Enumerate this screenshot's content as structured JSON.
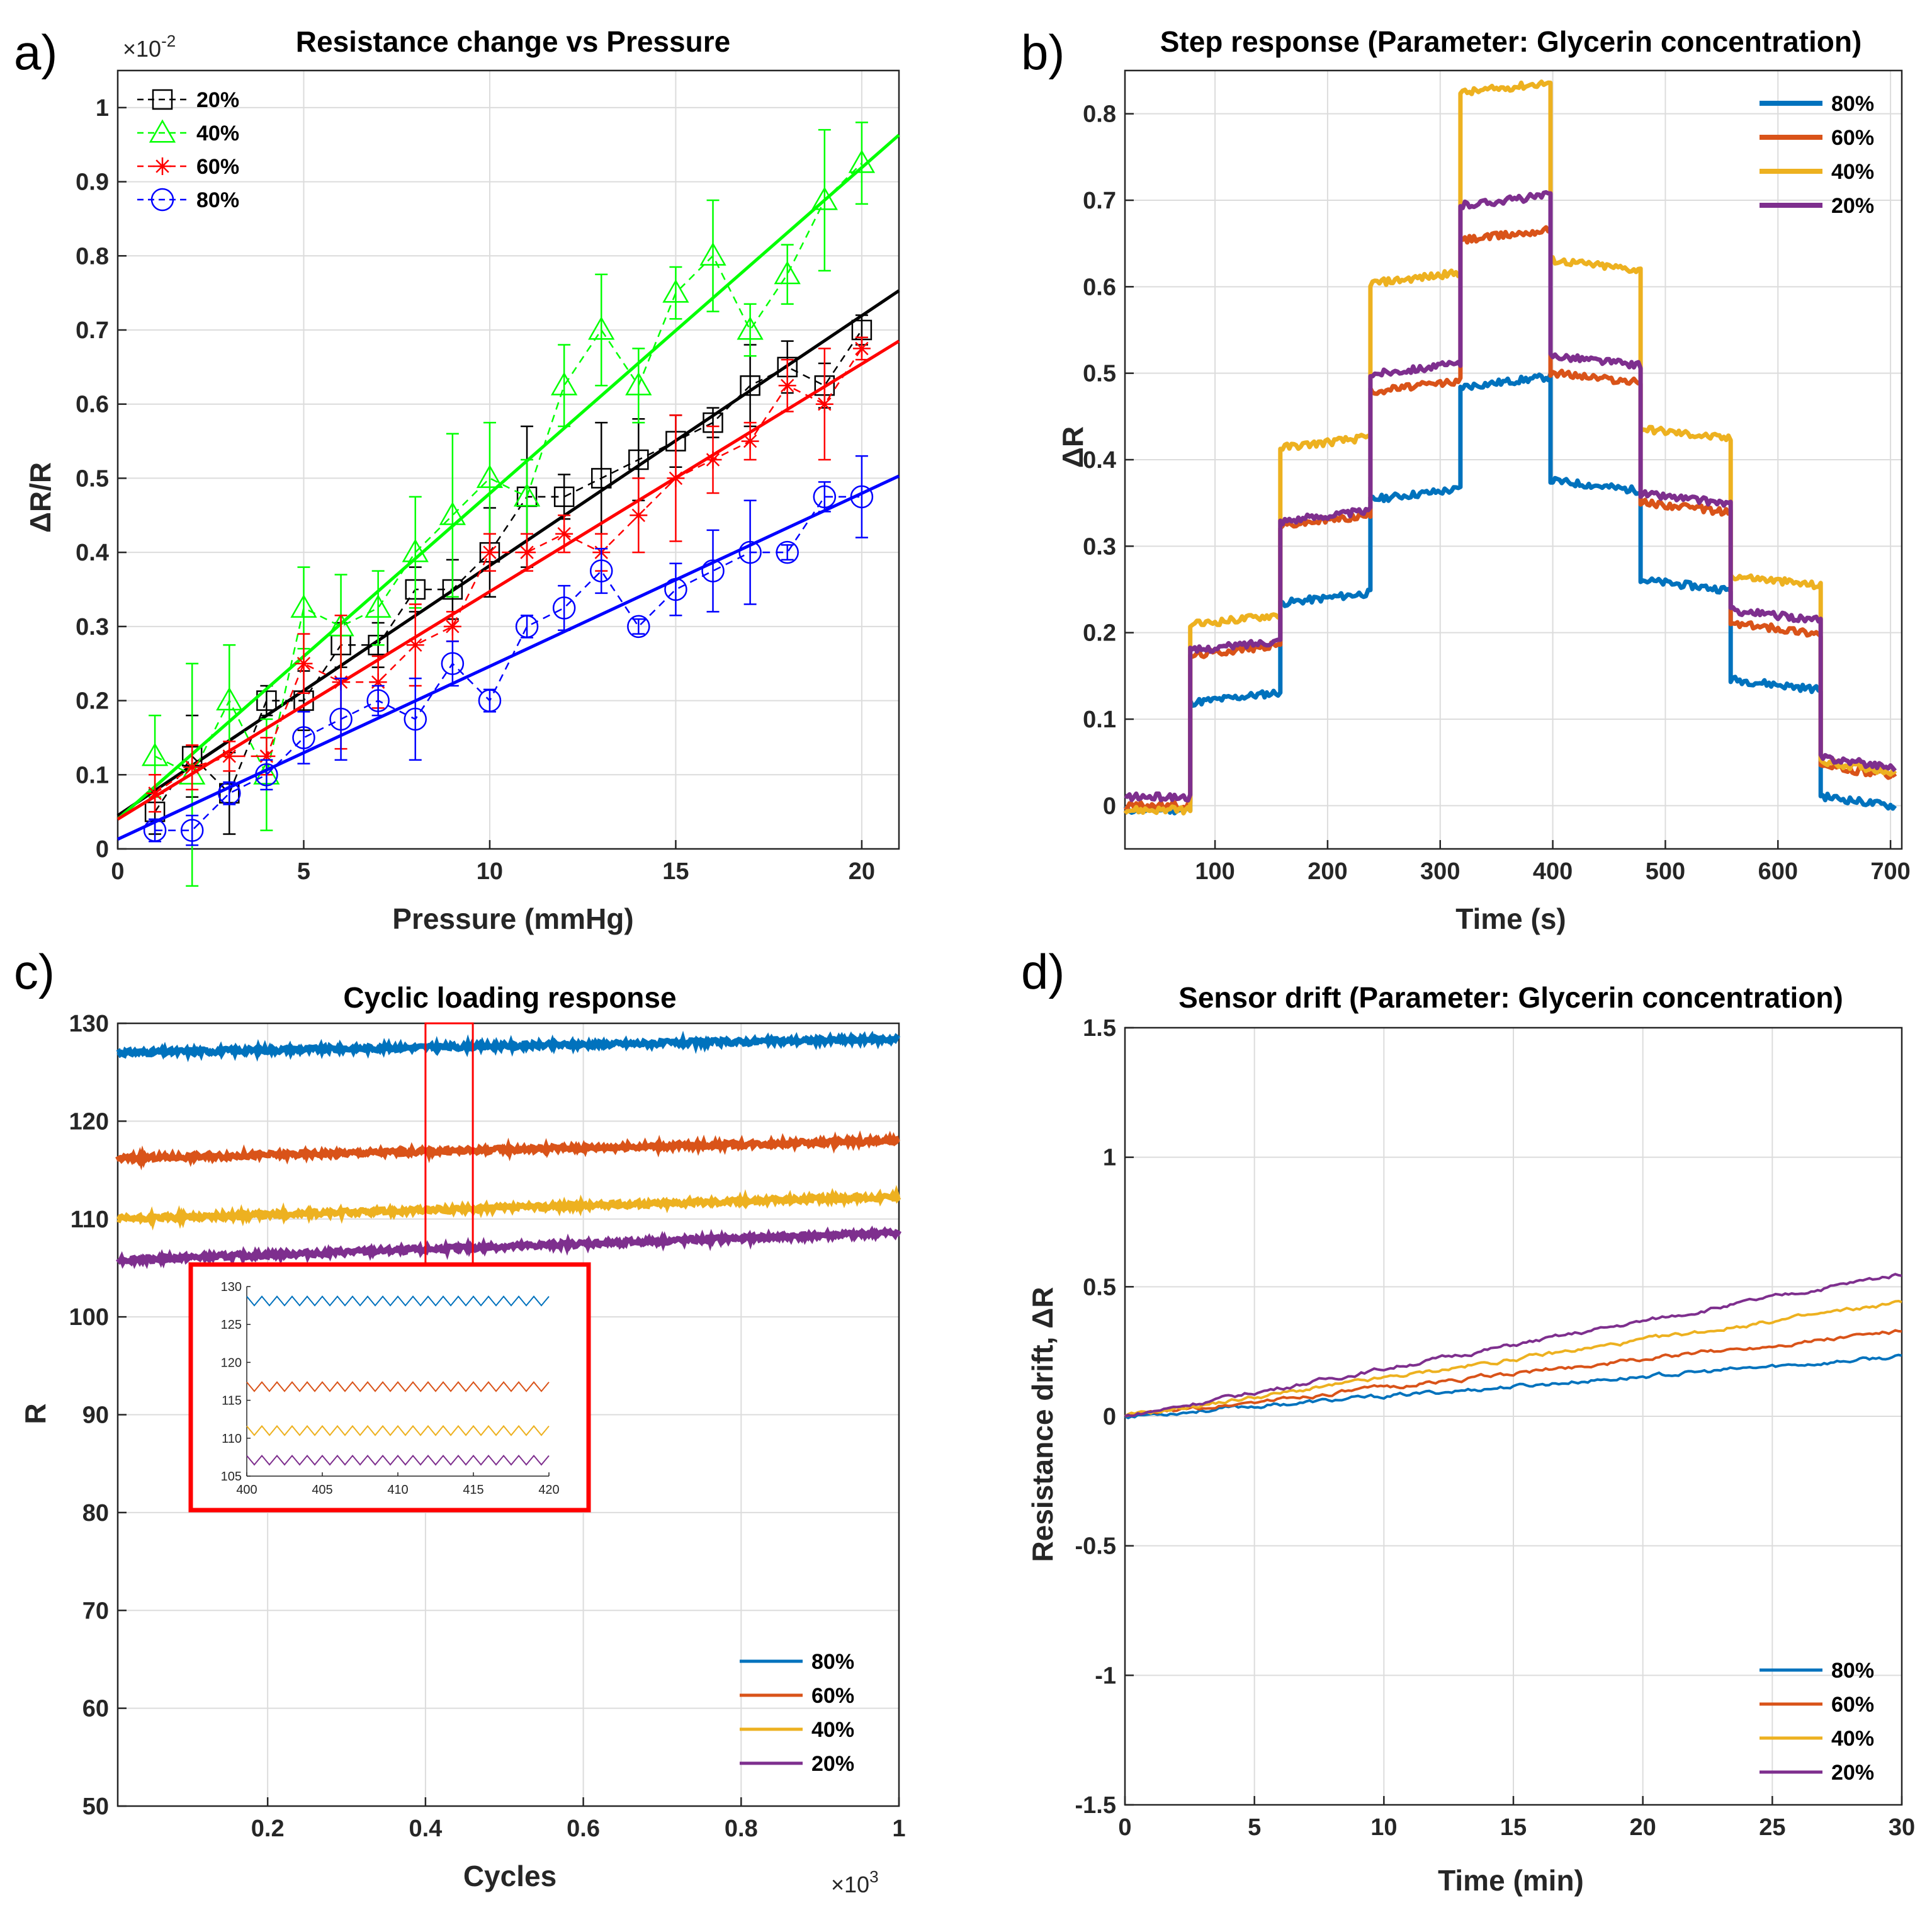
{
  "figure": {
    "panel_labels": [
      "a)",
      "b)",
      "c)",
      "d)"
    ]
  },
  "chart_data": [
    {
      "panel": "a)",
      "type": "line",
      "subtype": "errorbar-with-linear-fit",
      "title": "Resistance change vs Pressure",
      "xlabel": "Pressure (mmHg)",
      "ylabel": "ΔR/R",
      "y_multiplier": "×10",
      "y_multiplier_exp": "-2",
      "xlim": [
        0,
        21
      ],
      "ylim": [
        0,
        1.05
      ],
      "xticks": [
        0,
        5,
        10,
        15,
        20
      ],
      "xtick_labels": [
        "0",
        "5",
        "10",
        "15",
        "20"
      ],
      "yticks": [
        0,
        0.1,
        0.2,
        0.3,
        0.4,
        0.5,
        0.6,
        0.7,
        0.8,
        0.9,
        1
      ],
      "ytick_labels": [
        "0",
        "0.1",
        "0.2",
        "0.3",
        "0.4",
        "0.5",
        "0.6",
        "0.7",
        "0.8",
        "0.9",
        "1"
      ],
      "grid": true,
      "legend": "top-left",
      "x": [
        1,
        2,
        3,
        4,
        5,
        6,
        7,
        8,
        9,
        10,
        11,
        12,
        13,
        14,
        15,
        16,
        17,
        18,
        19,
        20
      ],
      "series": [
        {
          "name": "20%",
          "color": "#000000",
          "marker": "square",
          "values": [
            0.05,
            0.125,
            0.075,
            0.2,
            0.2,
            0.275,
            0.275,
            0.35,
            0.35,
            0.4,
            0.475,
            0.475,
            0.5,
            0.525,
            0.55,
            0.575,
            0.625,
            0.65,
            0.625,
            0.7
          ],
          "errors": [
            0.03,
            0.055,
            0.055,
            0.02,
            0.04,
            0.03,
            0.03,
            0.03,
            0.04,
            0.06,
            0.095,
            0.03,
            0.075,
            0.055,
            0.035,
            0.02,
            0.055,
            0.035,
            0.03,
            0.02
          ],
          "fit": [
            0.045,
            0.753
          ]
        },
        {
          "name": "40%",
          "color": "#00ff00",
          "marker": "triangle",
          "values": [
            0.125,
            0.1,
            0.2,
            0.1,
            0.325,
            0.3,
            0.325,
            0.4,
            0.45,
            0.5,
            0.475,
            0.625,
            0.7,
            0.625,
            0.75,
            0.8,
            0.7,
            0.775,
            0.875,
            0.925
          ],
          "errors": [
            0.055,
            0.15,
            0.075,
            0.075,
            0.055,
            0.07,
            0.05,
            0.075,
            0.11,
            0.075,
            0.05,
            0.055,
            0.075,
            0.05,
            0.035,
            0.075,
            0.035,
            0.04,
            0.095,
            0.055
          ],
          "fit": [
            0.04,
            0.963
          ]
        },
        {
          "name": "60%",
          "color": "#ff0000",
          "marker": "asterisk",
          "values": [
            0.075,
            0.11,
            0.125,
            0.125,
            0.25,
            0.225,
            0.225,
            0.275,
            0.3,
            0.4,
            0.4,
            0.425,
            0.4,
            0.45,
            0.5,
            0.525,
            0.55,
            0.625,
            0.6,
            0.675
          ],
          "errors": [
            0.025,
            0.03,
            0.02,
            0.025,
            0.04,
            0.09,
            0.035,
            0.055,
            0.02,
            0.025,
            0.025,
            0.025,
            0.025,
            0.05,
            0.085,
            0.045,
            0.025,
            0.035,
            0.075,
            0.015
          ],
          "fit": [
            0.04,
            0.685
          ]
        },
        {
          "name": "80%",
          "color": "#0000ff",
          "marker": "circle",
          "values": [
            0.025,
            0.025,
            0.075,
            0.1,
            0.15,
            0.175,
            0.2,
            0.175,
            0.25,
            0.2,
            0.3,
            0.325,
            0.375,
            0.3,
            0.35,
            0.375,
            0.4,
            0.4,
            0.475,
            0.475
          ],
          "errors": [
            0.015,
            0.02,
            0.015,
            0.02,
            0.035,
            0.055,
            0.02,
            0.055,
            0.03,
            0.015,
            0.015,
            0.03,
            0.03,
            0.01,
            0.035,
            0.055,
            0.07,
            0.01,
            0.02,
            0.055
          ],
          "fit": [
            0.013,
            0.503
          ]
        }
      ]
    },
    {
      "panel": "b)",
      "type": "line",
      "title": "Step response (Parameter: Glycerin concentration)",
      "xlabel": "Time (s)",
      "ylabel": "ΔR",
      "xlim": [
        20,
        710
      ],
      "ylim": [
        -0.05,
        0.85
      ],
      "xticks": [
        100,
        200,
        300,
        400,
        500,
        600,
        700
      ],
      "xtick_labels": [
        "100",
        "200",
        "300",
        "400",
        "500",
        "600",
        "700"
      ],
      "yticks": [
        0,
        0.1,
        0.2,
        0.3,
        0.4,
        0.5,
        0.6,
        0.7,
        0.8
      ],
      "ytick_labels": [
        "0",
        "0.1",
        "0.2",
        "0.3",
        "0.4",
        "0.5",
        "0.6",
        "0.7",
        "0.8"
      ],
      "grid": true,
      "legend": "top-right",
      "step_times": [
        20,
        78,
        158,
        238,
        318,
        398,
        478,
        558,
        638,
        705
      ],
      "series": [
        {
          "name": "80%",
          "color": "#0072bd",
          "levels": [
            -0.005,
            0.125,
            0.24,
            0.36,
            0.49,
            0.37,
            0.255,
            0.14,
            0.005
          ]
        },
        {
          "name": "60%",
          "color": "#d95319",
          "levels": [
            0.0,
            0.18,
            0.33,
            0.485,
            0.66,
            0.495,
            0.345,
            0.205,
            0.04
          ]
        },
        {
          "name": "40%",
          "color": "#edb120",
          "levels": [
            -0.005,
            0.215,
            0.42,
            0.61,
            0.83,
            0.625,
            0.43,
            0.26,
            0.045
          ]
        },
        {
          "name": "20%",
          "color": "#7e2f8e",
          "levels": [
            0.01,
            0.185,
            0.335,
            0.505,
            0.7,
            0.515,
            0.355,
            0.22,
            0.05
          ]
        }
      ]
    },
    {
      "panel": "c)",
      "type": "line",
      "title": "Cyclic loading response",
      "xlabel": "Cycles",
      "ylabel": "R",
      "x_multiplier": "×10",
      "x_multiplier_exp": "3",
      "xlim": [
        0.01,
        1.0
      ],
      "ylim": [
        50,
        130
      ],
      "xticks": [
        0.2,
        0.4,
        0.6,
        0.8,
        1
      ],
      "xtick_labels": [
        "0.2",
        "0.4",
        "0.6",
        "0.8",
        "1"
      ],
      "yticks": [
        50,
        60,
        70,
        80,
        90,
        100,
        110,
        120,
        130
      ],
      "ytick_labels": [
        "50",
        "60",
        "70",
        "80",
        "90",
        "100",
        "110",
        "120",
        "130"
      ],
      "grid": true,
      "legend": "bottom-right",
      "series": [
        {
          "name": "80%",
          "color": "#0072bd",
          "start": 127.0,
          "end": 128.4
        },
        {
          "name": "60%",
          "color": "#d95319",
          "start": 116.2,
          "end": 118.0
        },
        {
          "name": "40%",
          "color": "#edb120",
          "start": 110.0,
          "end": 112.3
        },
        {
          "name": "20%",
          "color": "#7e2f8e",
          "start": 105.8,
          "end": 108.6
        }
      ],
      "zoom_region": {
        "x": [
          0.4,
          0.46
        ],
        "y": [
          103,
          130
        ]
      },
      "inset": {
        "xlim": [
          400,
          420
        ],
        "ylim": [
          105,
          130
        ],
        "xticks": [
          400,
          405,
          410,
          415,
          420
        ],
        "xtick_labels": [
          "400",
          "405",
          "410",
          "415",
          "420"
        ],
        "yticks": [
          105,
          110,
          115,
          120,
          125,
          130
        ],
        "ytick_labels": [
          "105",
          "110",
          "115",
          "120",
          "125",
          "130"
        ],
        "cycles": 20,
        "series": [
          {
            "name": "80%",
            "color": "#0072bd",
            "mean": 128.1,
            "amp": 0.6
          },
          {
            "name": "60%",
            "color": "#d95319",
            "mean": 116.8,
            "amp": 0.6
          },
          {
            "name": "40%",
            "color": "#edb120",
            "mean": 111.0,
            "amp": 0.6
          },
          {
            "name": "20%",
            "color": "#7e2f8e",
            "mean": 107.1,
            "amp": 0.6
          }
        ]
      }
    },
    {
      "panel": "d)",
      "type": "line",
      "title": "Sensor drift (Parameter: Glycerin concentration)",
      "xlabel": "Time (min)",
      "ylabel": "Resistance drift, ΔR",
      "xlim": [
        0,
        30
      ],
      "ylim": [
        -1.5,
        1.5
      ],
      "xticks": [
        0,
        5,
        10,
        15,
        20,
        25,
        30
      ],
      "xtick_labels": [
        "0",
        "5",
        "10",
        "15",
        "20",
        "25",
        "30"
      ],
      "yticks": [
        -1.5,
        -1,
        -0.5,
        0,
        0.5,
        1,
        1.5
      ],
      "ytick_labels": [
        "-1.5",
        "-1",
        "-0.5",
        "0",
        "0.5",
        "1",
        "1.5"
      ],
      "grid": true,
      "legend": "bottom-right",
      "series": [
        {
          "name": "80%",
          "color": "#0072bd",
          "end": 0.23
        },
        {
          "name": "60%",
          "color": "#d95319",
          "end": 0.33
        },
        {
          "name": "40%",
          "color": "#edb120",
          "end": 0.44
        },
        {
          "name": "20%",
          "color": "#7e2f8e",
          "end": 0.55
        }
      ]
    }
  ]
}
